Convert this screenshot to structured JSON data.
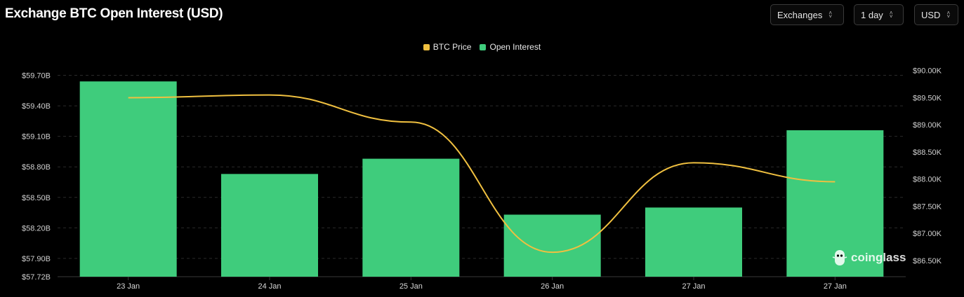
{
  "header": {
    "title": "Exchange BTC Open Interest (USD)",
    "controls": [
      {
        "label": "Exchanges",
        "icon": "chevron-updown-icon"
      },
      {
        "label": "1 day",
        "icon": "chevron-updown-icon"
      },
      {
        "label": "USD",
        "icon": "chevron-updown-icon"
      }
    ]
  },
  "watermark": {
    "text": "coinglass",
    "icon": "coinglass-logo-icon"
  },
  "chart_data": {
    "type": "bar",
    "categories": [
      "23 Jan",
      "24 Jan",
      "25 Jan",
      "26 Jan",
      "27 Jan",
      "27 Jan"
    ],
    "series": [
      {
        "name": "Open Interest",
        "type": "bar",
        "axis": "left",
        "color": "#3fcc7c",
        "values": [
          59.64,
          58.73,
          58.88,
          58.33,
          58.4,
          59.16
        ]
      },
      {
        "name": "BTC Price",
        "type": "line",
        "axis": "right",
        "color": "#f0c040",
        "values": [
          89500,
          89550,
          89050,
          86650,
          88300,
          87950
        ]
      }
    ],
    "legend": {
      "position": "top-center",
      "order": [
        "BTC Price",
        "Open Interest"
      ]
    },
    "left_axis": {
      "ylim": [
        57.72,
        59.8
      ],
      "ticks": [
        59.7,
        59.4,
        59.1,
        58.8,
        58.5,
        58.2,
        57.9,
        57.72
      ],
      "tick_labels": [
        "$59.70B",
        "$59.40B",
        "$59.10B",
        "$58.80B",
        "$58.50B",
        "$58.20B",
        "$57.90B",
        "$57.72B"
      ]
    },
    "right_axis": {
      "ylim": [
        86200,
        90100
      ],
      "ticks": [
        90000,
        89500,
        89000,
        88500,
        88000,
        87500,
        87000,
        86500
      ],
      "tick_labels": [
        "$90.00K",
        "$89.50K",
        "$89.00K",
        "$88.50K",
        "$88.00K",
        "$87.50K",
        "$87.00K",
        "$86.50K"
      ]
    },
    "grid": true,
    "colors": {
      "background": "#000000",
      "grid": "#2a2a2a",
      "bar": "#3fcc7c",
      "line": "#f0c040"
    }
  }
}
